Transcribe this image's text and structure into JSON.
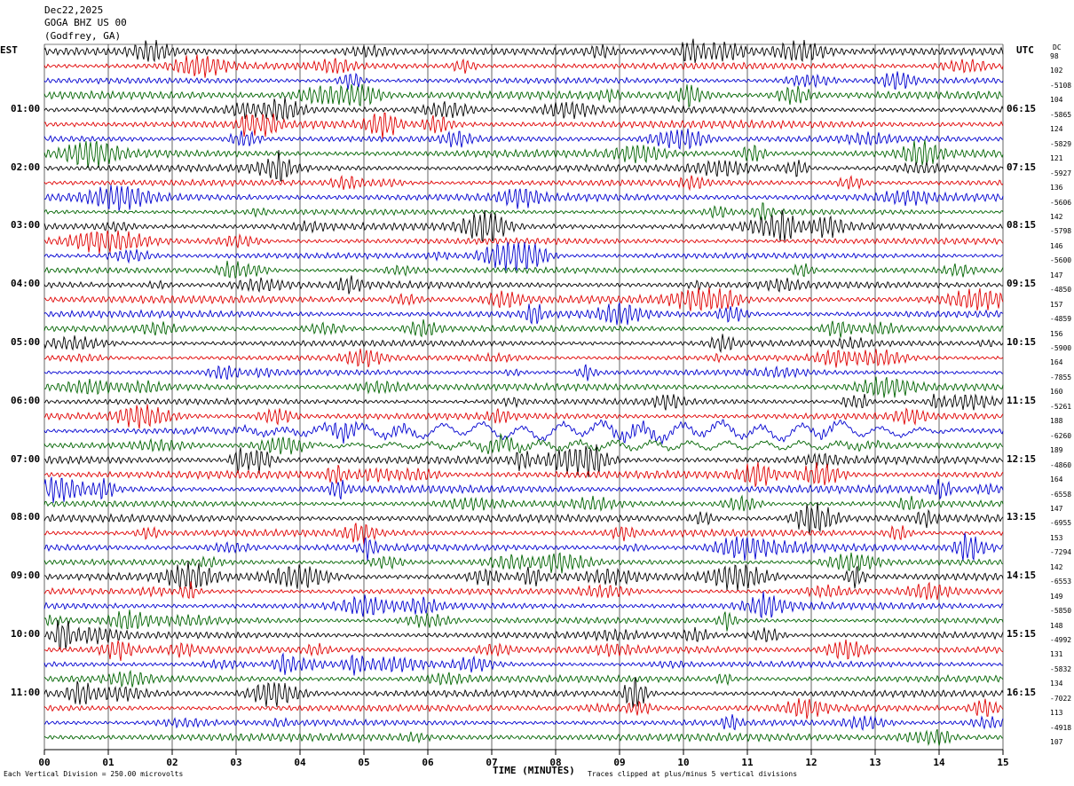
{
  "header": {
    "date": "Dec22,2025",
    "station": "GOGA BHZ US 00",
    "location": "(Godfrey, GA)"
  },
  "left_axis_label": "EST",
  "right_axis_label": "UTC",
  "dc_label": "DC",
  "bottom": {
    "xlabel": "TIME (MINUTES)",
    "scale_note": "Each Vertical Division =  250.00 microvolts",
    "clip_note": "Traces clipped at plus/minus 5 vertical divisions"
  },
  "colors": {
    "row_cycle": [
      "#000000",
      "#e00000",
      "#0000d0",
      "#006400"
    ],
    "grid": "#000000",
    "background": "#ffffff"
  },
  "chart_data": {
    "type": "line",
    "title": "GOGA BHZ US 00 (Godfrey, GA) Dec22,2025",
    "xlabel": "TIME (MINUTES)",
    "xlim": [
      0,
      15
    ],
    "x_ticks": [
      "00",
      "01",
      "02",
      "03",
      "04",
      "05",
      "06",
      "07",
      "08",
      "09",
      "10",
      "11",
      "12",
      "13",
      "14",
      "15"
    ],
    "rows": 48,
    "rows_per_hour": 4,
    "est_hour_labels": [
      "01:00",
      "02:00",
      "03:00",
      "04:00",
      "05:00",
      "06:00",
      "07:00",
      "08:00",
      "09:00",
      "10:00",
      "11:00"
    ],
    "utc_hour_labels": [
      "06:15",
      "07:15",
      "08:15",
      "09:15",
      "10:15",
      "11:15",
      "12:15",
      "13:15",
      "14:15",
      "15:15",
      "16:15"
    ],
    "dc_offsets": [
      "98",
      "102",
      "-5108",
      "104",
      "-5865",
      "124",
      "-5829",
      "121",
      "-5927",
      "136",
      "-5606",
      "142",
      "-5798",
      "146",
      "-5600",
      "147",
      "-4850",
      "157",
      "-4859",
      "156",
      "-5900",
      "164",
      "-7855",
      "160",
      "-5261",
      "188",
      "-6260",
      "189",
      "-4860",
      "164",
      "-6558",
      "147",
      "-6955",
      "153",
      "-7294",
      "142",
      "-6553",
      "149",
      "-5850",
      "148",
      "-4992",
      "131",
      "-5832",
      "134",
      "-7022",
      "113",
      "-4918",
      "107"
    ],
    "scale_microvolts_per_division": 250.0,
    "clip_divisions": 5
  }
}
